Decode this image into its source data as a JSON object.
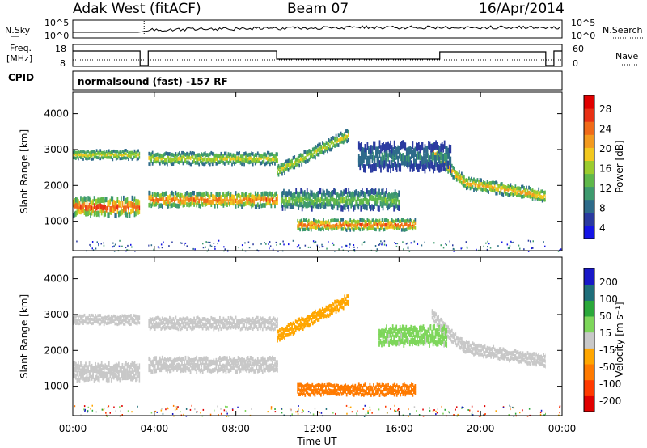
{
  "header": {
    "station": "Adak West (fitACF)",
    "beam": "Beam 07",
    "date": "16/Apr/2014"
  },
  "labels": {
    "nsky": "N.Sky",
    "nsearch": "N.Search",
    "freq_line1": "Freq.",
    "freq_line2": "[MHz]",
    "nave": "Nave",
    "cpid": "CPID",
    "program": "normalsound (fast) -157 RF"
  },
  "small_axes": {
    "noise_left": [
      "10^5",
      "10^0"
    ],
    "noise_right": [
      "10^5",
      "10^0"
    ],
    "freq_left": [
      "18",
      "8"
    ],
    "nave_right": [
      "60",
      "0"
    ]
  },
  "colors": {
    "power": [
      "#1414e6",
      "#2a3aa0",
      "#2e6b8a",
      "#3e9a6e",
      "#5fb84a",
      "#9bcc2e",
      "#f2c81e",
      "#f39a1e",
      "#f06a18",
      "#e83014",
      "#e00000"
    ],
    "velocity": [
      "#e00000",
      "#ff3a00",
      "#ff7a00",
      "#ffa600",
      "#c8c8c8",
      "#7dd65a",
      "#2aa83a",
      "#1e6e7a",
      "#1818c8"
    ]
  },
  "chart_data": [
    {
      "type": "heatmap",
      "panel": "power",
      "ylabel": "Slant Range [km]",
      "y_ticks": [
        1000,
        2000,
        3000,
        4000
      ],
      "ylim": [
        180,
        4600
      ],
      "xlim": [
        0,
        24
      ],
      "x_ticks": [
        "00:00",
        "04:00",
        "08:00",
        "12:00",
        "16:00",
        "20:00",
        "00:00"
      ],
      "colorbar": {
        "label": "Power [dB]",
        "ticks": [
          "28",
          "24",
          "20",
          "16",
          "12",
          "8",
          "4"
        ],
        "range": [
          0,
          30
        ]
      },
      "data_gaps_hours": [
        [
          3.3,
          3.7
        ],
        [
          23.2,
          23.6
        ]
      ],
      "bands": [
        {
          "t0": 0.0,
          "t1": 3.3,
          "r_center": 1400,
          "r_width": 480,
          "peak_db": 28
        },
        {
          "t0": 3.7,
          "t1": 10.0,
          "r_center": 1600,
          "r_width": 380,
          "peak_db": 26
        },
        {
          "t0": 0.0,
          "t1": 3.3,
          "r_center": 2850,
          "r_width": 260,
          "peak_db": 18
        },
        {
          "t0": 3.7,
          "t1": 10.0,
          "r_center": 2750,
          "r_width": 320,
          "peak_db": 18
        },
        {
          "t0": 10.0,
          "t1": 13.5,
          "r_center": 2400,
          "r_width": 320,
          "peak_db": 18
        },
        {
          "t0": 10.2,
          "t1": 16.0,
          "r_center": 1600,
          "r_width": 500,
          "peak_db": 14
        },
        {
          "t0": 11.0,
          "t1": 16.8,
          "r_center": 900,
          "r_width": 300,
          "peak_db": 26
        },
        {
          "t0": 17.6,
          "t1": 23.2,
          "r_center": 1700,
          "r_width": 320,
          "peak_db": 22
        },
        {
          "t0": 14.0,
          "t1": 18.5,
          "r_center": 2800,
          "r_width": 700,
          "peak_db": 8
        }
      ]
    },
    {
      "type": "heatmap",
      "panel": "velocity",
      "ylabel": "Slant Range [km]",
      "y_ticks": [
        1000,
        2000,
        3000,
        4000
      ],
      "ylim": [
        180,
        4600
      ],
      "xlim": [
        0,
        24
      ],
      "xlabel": "Time UT",
      "x_ticks": [
        "00:00",
        "04:00",
        "08:00",
        "12:00",
        "16:00",
        "20:00",
        "00:00"
      ],
      "colorbar": {
        "label": "Velocity [m s⁻¹]",
        "ticks": [
          "200",
          "100",
          "50",
          "15",
          "-15",
          "-50",
          "-100",
          "-200"
        ],
        "range": [
          -250,
          250
        ]
      },
      "bands": [
        {
          "t0": 0.0,
          "t1": 3.3,
          "r_center": 1400,
          "r_width": 480,
          "vel": 0
        },
        {
          "t0": 3.7,
          "t1": 10.0,
          "r_center": 1600,
          "r_width": 380,
          "vel": 0
        },
        {
          "t0": 0.0,
          "t1": 3.3,
          "r_center": 2850,
          "r_width": 260,
          "vel": 0
        },
        {
          "t0": 3.7,
          "t1": 10.0,
          "r_center": 2750,
          "r_width": 320,
          "vel": 0
        },
        {
          "t0": 10.0,
          "t1": 13.5,
          "r_center": 2400,
          "r_width": 320,
          "vel": -70
        },
        {
          "t0": 11.0,
          "t1": 16.8,
          "r_center": 900,
          "r_width": 300,
          "vel": -120
        },
        {
          "t0": 17.6,
          "t1": 23.2,
          "r_center": 1700,
          "r_width": 320,
          "vel": 0
        },
        {
          "t0": 15.0,
          "t1": 18.3,
          "r_center": 2400,
          "r_width": 500,
          "vel": 40
        }
      ]
    }
  ]
}
